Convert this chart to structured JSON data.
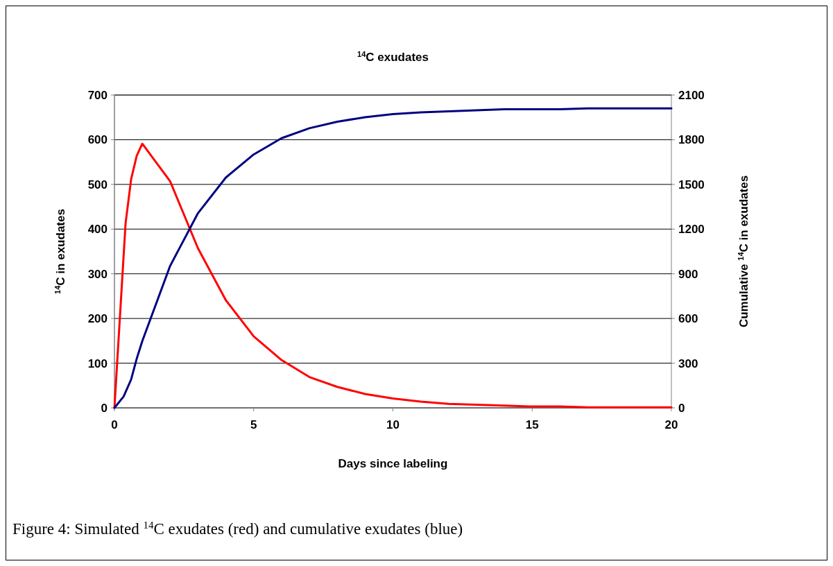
{
  "chart_data": {
    "type": "line",
    "title": "$^{14}$C exudates",
    "xlabel": "Days since labeling",
    "ylabel": "$^{14}$C in exudates",
    "y2label": "Cumulative $^{14}$C in exudates",
    "annotations": [
      "Figure 4: Simulated $^{14}$C exudates (red) and cumulative exudates (blue)"
    ],
    "xlim": [
      0,
      20
    ],
    "xticks": [
      0,
      5,
      10,
      15,
      20
    ],
    "ylim": [
      0,
      700
    ],
    "yticks": [
      0,
      100,
      200,
      300,
      400,
      500,
      600,
      700
    ],
    "y2lim": [
      0,
      2100
    ],
    "y2ticks": [
      0,
      300,
      600,
      900,
      1200,
      1500,
      1800,
      2100
    ],
    "grid": "y",
    "marker": "none",
    "line_style": "solid",
    "series": [
      {
        "color": "#ff0000",
        "x": [
          0,
          0.4,
          0.6,
          0.8,
          1,
          2,
          3,
          4,
          5,
          6,
          7,
          8,
          9,
          10,
          11,
          12,
          13,
          14,
          15,
          16,
          17,
          18,
          19,
          20
        ],
        "values": [
          0,
          413,
          512,
          564,
          591,
          507,
          357,
          241,
          160,
          107,
          69,
          47,
          31,
          21,
          14,
          9,
          7,
          5,
          3,
          3,
          1,
          1,
          1,
          1
        ]
      },
      {
        "color": "#000080",
        "axis": "y2",
        "x": [
          0,
          0.33,
          0.6,
          0.8,
          1,
          2,
          3,
          4,
          5,
          6,
          7,
          8,
          9,
          10,
          11,
          12,
          13,
          14,
          15,
          16,
          17,
          18,
          19,
          20
        ],
        "values": [
          0,
          76,
          191,
          330,
          448,
          953,
          1307,
          1546,
          1701,
          1810,
          1877,
          1921,
          1951,
          1972,
          1984,
          1991,
          1998,
          2005,
          2005,
          2005,
          2010,
          2010,
          2010,
          2010
        ]
      }
    ]
  }
}
